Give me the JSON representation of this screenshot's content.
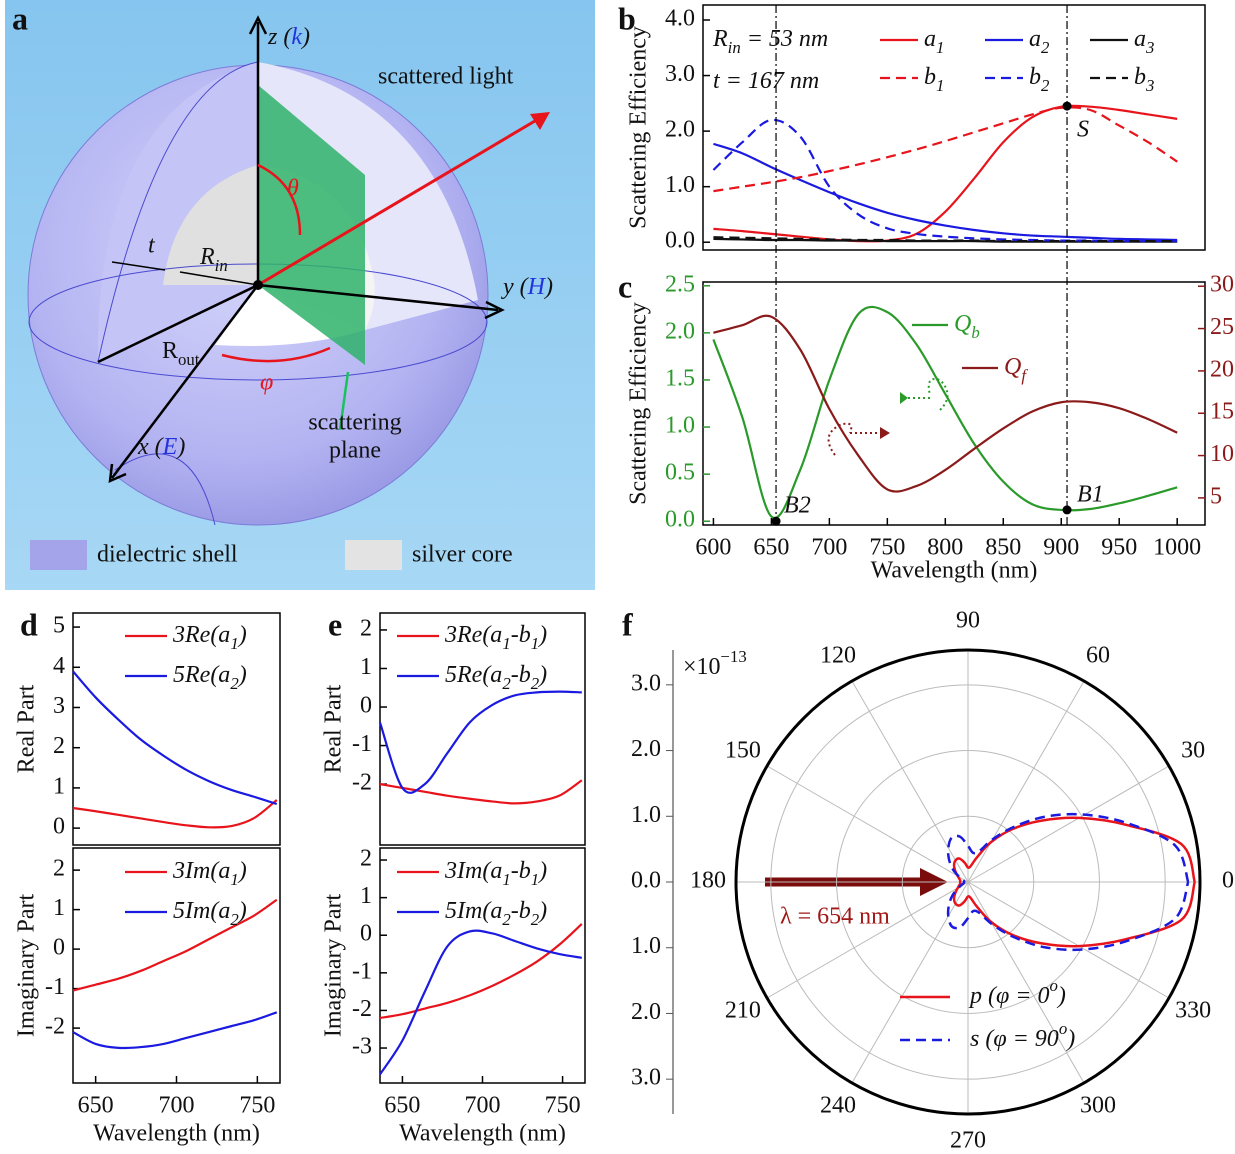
{
  "panel_labels": [
    "a",
    "b",
    "c",
    "d",
    "e",
    "f"
  ],
  "diagram": {
    "z_axis": [
      {
        "text": "z ("
      },
      {
        "text": "k",
        "color": "#2233dd"
      },
      {
        "text": ")"
      }
    ],
    "scattered_light": "scattered light",
    "theta": "θ",
    "t": "t",
    "r_in": [
      {
        "text": "R"
      },
      {
        "sub": "in"
      }
    ],
    "y_axis": [
      {
        "text": "y ("
      },
      {
        "text": "H",
        "color": "#2233dd"
      },
      {
        "text": ")"
      }
    ],
    "r_out": [
      {
        "text": "R"
      },
      {
        "sub": "out"
      }
    ],
    "phi": "φ",
    "x_axis": [
      {
        "text": "x ("
      },
      {
        "text": "E",
        "color": "#2233dd"
      },
      {
        "text": ")"
      }
    ],
    "scattering_plane": [
      "scattering",
      "plane"
    ],
    "legend": [
      "dielectric shell",
      "silver core"
    ]
  },
  "chart_data": [
    {
      "type": "line",
      "ylabel": "Scattering Efficiency",
      "x": [
        600,
        625,
        650,
        675,
        700,
        725,
        750,
        775,
        800,
        825,
        850,
        875,
        900,
        925,
        950,
        975,
        1000
      ],
      "xlim": [
        591,
        1024
      ],
      "ylim": [
        -0.14,
        4.27
      ],
      "yticks": [
        {
          "value": 0,
          "label": "0.0"
        },
        {
          "value": 1,
          "label": "1.0"
        },
        {
          "value": 2,
          "label": "2.0"
        },
        {
          "value": 3,
          "label": "3.0"
        },
        {
          "value": 4,
          "label": "4.0"
        }
      ],
      "annotations": [
        [
          {
            "text": "R"
          },
          {
            "sub": "in"
          },
          {
            "text": " = 53 nm"
          }
        ],
        [
          {
            "text": "t"
          },
          {
            "text": " = 167 nm"
          }
        ]
      ],
      "points": [
        {
          "x": 905,
          "y": 2.45,
          "label": "S"
        }
      ],
      "series": [
        {
          "name": [
            {
              "text": "a"
            },
            {
              "sub": "1"
            }
          ],
          "color": "#e8141b",
          "style": "solid",
          "values": [
            0.24,
            0.2,
            0.15,
            0.1,
            0.05,
            0.02,
            0.03,
            0.15,
            0.55,
            1.15,
            1.8,
            2.25,
            2.44,
            2.44,
            2.38,
            2.3,
            2.22
          ]
        },
        {
          "name": [
            {
              "text": "a"
            },
            {
              "sub": "2"
            }
          ],
          "color": "#1a1ae0",
          "style": "solid",
          "values": [
            1.77,
            1.6,
            1.35,
            1.12,
            0.9,
            0.7,
            0.53,
            0.4,
            0.3,
            0.22,
            0.16,
            0.12,
            0.1,
            0.08,
            0.06,
            0.05,
            0.04
          ]
        },
        {
          "name": [
            {
              "text": "a"
            },
            {
              "sub": "3"
            }
          ],
          "color": "#111111",
          "style": "solid",
          "values": [
            0.06,
            0.05,
            0.04,
            0.04,
            0.03,
            0.03,
            0.02,
            0.02,
            0.02,
            0.02,
            0.01,
            0.01,
            0.01,
            0.01,
            0.01,
            0.01,
            0.01
          ]
        },
        {
          "name": [
            {
              "text": "b"
            },
            {
              "sub": "1"
            }
          ],
          "color": "#e8141b",
          "style": "dashed",
          "values": [
            0.92,
            1.0,
            1.08,
            1.17,
            1.28,
            1.4,
            1.53,
            1.67,
            1.82,
            1.98,
            2.14,
            2.3,
            2.42,
            2.38,
            2.1,
            1.8,
            1.45
          ]
        },
        {
          "name": [
            {
              "text": "b"
            },
            {
              "sub": "2"
            }
          ],
          "color": "#1a1ae0",
          "style": "dashed",
          "values": [
            1.3,
            1.8,
            2.2,
            1.9,
            1.0,
            0.5,
            0.25,
            0.15,
            0.1,
            0.07,
            0.05,
            0.04,
            0.03,
            0.03,
            0.02,
            0.02,
            0.02
          ]
        },
        {
          "name": [
            {
              "text": "b"
            },
            {
              "sub": "3"
            }
          ],
          "color": "#111111",
          "style": "dashed",
          "values": [
            0.09,
            0.08,
            0.07,
            0.06,
            0.05,
            0.04,
            0.04,
            0.03,
            0.03,
            0.03,
            0.02,
            0.02,
            0.02,
            0.02,
            0.02,
            0.02,
            0.02
          ]
        }
      ]
    },
    {
      "type": "line",
      "ylabel": "Scattering Efficiency",
      "xlabel": "Wavelength (nm)",
      "x": [
        600,
        625,
        650,
        675,
        700,
        725,
        750,
        775,
        800,
        825,
        850,
        875,
        900,
        925,
        950,
        975,
        1000
      ],
      "xlim": [
        591,
        1024
      ],
      "ylim": [
        -0.04,
        2.54
      ],
      "y2lim": [
        1.8,
        30.5
      ],
      "xticks": [
        600,
        650,
        700,
        750,
        800,
        850,
        900,
        950,
        1000
      ],
      "yticks": [
        {
          "value": 0,
          "label": "0.0"
        },
        0.5,
        {
          "value": 1,
          "label": "1.0"
        },
        1.5,
        {
          "value": 2,
          "label": "2.0"
        },
        2.5
      ],
      "y2ticks": [
        5,
        10,
        15,
        20,
        25,
        30
      ],
      "vlines": [
        654,
        905
      ],
      "points": [
        {
          "x": 654,
          "y": 0,
          "label": "B2"
        },
        {
          "x": 905,
          "y": 0.12,
          "label": "B1"
        }
      ],
      "series": [
        {
          "name": [
            {
              "text": "Q"
            },
            {
              "sub": "b"
            }
          ],
          "color": "#2a9a2a",
          "style": "solid",
          "values": [
            1.93,
            1.1,
            0.05,
            0.55,
            1.5,
            2.2,
            2.22,
            1.88,
            1.35,
            0.82,
            0.42,
            0.18,
            0.12,
            0.13,
            0.19,
            0.27,
            0.36
          ]
        },
        {
          "name": [
            {
              "text": "Q"
            },
            {
              "sub": "f"
            }
          ],
          "color": "#8b1a1a",
          "style": "solid",
          "axis": "y2",
          "values": [
            24.5,
            25.4,
            26.4,
            22.5,
            15.5,
            10,
            6.0,
            6.4,
            8.3,
            10.8,
            13.2,
            15.2,
            16.3,
            16.3,
            15.6,
            14.3,
            12.7
          ]
        }
      ]
    },
    {
      "type": "line",
      "ylabel": "Real Part",
      "x": [
        636,
        650,
        664,
        678,
        692,
        706,
        720,
        734,
        748,
        762
      ],
      "xlim": [
        636,
        764
      ],
      "ylim": [
        -0.42,
        5.35
      ],
      "yticks": [
        0,
        1,
        2,
        3,
        4,
        5
      ],
      "series": [
        {
          "name": [
            {
              "text": "3Re(a"
            },
            {
              "sub": "1"
            },
            {
              "text": ")"
            }
          ],
          "color": "#e8141b",
          "style": "solid",
          "values": [
            0.5,
            0.42,
            0.33,
            0.24,
            0.15,
            0.07,
            0.02,
            0.05,
            0.25,
            0.7
          ]
        },
        {
          "name": [
            {
              "text": "5Re(a"
            },
            {
              "sub": "2"
            },
            {
              "text": ")"
            }
          ],
          "color": "#1a1ae0",
          "style": "solid",
          "values": [
            3.9,
            3.25,
            2.7,
            2.2,
            1.8,
            1.45,
            1.17,
            0.95,
            0.78,
            0.6
          ]
        }
      ]
    },
    {
      "type": "line",
      "ylabel": "Imaginary Part",
      "xlabel": "Wavelength (nm)",
      "x": [
        636,
        650,
        664,
        678,
        692,
        706,
        720,
        734,
        748,
        762
      ],
      "xlim": [
        636,
        764
      ],
      "ylim": [
        -3.39,
        2.56
      ],
      "xticks": [
        650,
        700,
        750
      ],
      "yticks": [
        -2,
        -1,
        0,
        1,
        2
      ],
      "series": [
        {
          "name": [
            {
              "text": "3Im(a"
            },
            {
              "sub": "1"
            },
            {
              "text": ")"
            }
          ],
          "color": "#e8141b",
          "style": "solid",
          "values": [
            -1.05,
            -0.9,
            -0.75,
            -0.55,
            -0.3,
            -0.05,
            0.25,
            0.55,
            0.85,
            1.25
          ]
        },
        {
          "name": [
            {
              "text": "5Im(a"
            },
            {
              "sub": "2"
            },
            {
              "text": ")"
            }
          ],
          "color": "#1a1ae0",
          "style": "solid",
          "values": [
            -2.1,
            -2.4,
            -2.5,
            -2.48,
            -2.4,
            -2.25,
            -2.1,
            -1.95,
            -1.8,
            -1.6
          ]
        }
      ]
    },
    {
      "type": "line",
      "ylabel": "Real Part",
      "x": [
        636,
        650,
        664,
        678,
        692,
        706,
        720,
        734,
        748,
        762
      ],
      "xlim": [
        636,
        764
      ],
      "ylim": [
        -3.58,
        2.44
      ],
      "yticks": [
        -2,
        -1,
        0,
        1,
        2
      ],
      "series": [
        {
          "name": [
            {
              "text": "3Re(a"
            },
            {
              "sub": "1"
            },
            {
              "text": "-b"
            },
            {
              "sub": "1"
            },
            {
              "text": ")"
            }
          ],
          "color": "#e8141b",
          "style": "solid",
          "values": [
            -2.0,
            -2.1,
            -2.2,
            -2.3,
            -2.38,
            -2.45,
            -2.5,
            -2.45,
            -2.3,
            -1.9
          ]
        },
        {
          "name": [
            {
              "text": "5Re(a"
            },
            {
              "sub": "2"
            },
            {
              "text": "-b"
            },
            {
              "sub": "2"
            },
            {
              "text": ")"
            }
          ],
          "color": "#1a1ae0",
          "style": "solid",
          "values": [
            -0.4,
            -2.1,
            -2.0,
            -1.2,
            -0.4,
            0.05,
            0.3,
            0.38,
            0.4,
            0.38
          ]
        }
      ]
    },
    {
      "type": "line",
      "ylabel": "Imaginary Part",
      "xlabel": "Wavelength (nm)",
      "x": [
        636,
        650,
        664,
        678,
        692,
        706,
        720,
        734,
        748,
        762
      ],
      "xlim": [
        636,
        764
      ],
      "ylim": [
        -3.93,
        2.32
      ],
      "xticks": [
        650,
        700,
        750
      ],
      "yticks": [
        -3,
        -2,
        -1,
        0,
        1,
        2
      ],
      "series": [
        {
          "name": [
            {
              "text": "3Im(a"
            },
            {
              "sub": "1"
            },
            {
              "text": "-b"
            },
            {
              "sub": "1"
            },
            {
              "text": ")"
            }
          ],
          "color": "#e8141b",
          "style": "solid",
          "values": [
            -2.2,
            -2.1,
            -1.95,
            -1.8,
            -1.6,
            -1.35,
            -1.05,
            -0.7,
            -0.25,
            0.3
          ]
        },
        {
          "name": [
            {
              "text": "5Im(a"
            },
            {
              "sub": "2"
            },
            {
              "text": "-b"
            },
            {
              "sub": "2"
            },
            {
              "text": ")"
            }
          ],
          "color": "#1a1ae0",
          "style": "solid",
          "values": [
            -3.7,
            -2.8,
            -1.5,
            -0.3,
            0.1,
            0.05,
            -0.15,
            -0.35,
            -0.5,
            -0.6
          ]
        }
      ]
    },
    {
      "type": "polar",
      "scale_label": [
        {
          "text": "×10"
        },
        {
          "sup": "−13"
        }
      ],
      "annotation": "λ = 654 nm",
      "theta": [
        0,
        10,
        20,
        30,
        40,
        50,
        60,
        70,
        80,
        90,
        100,
        110,
        120,
        130,
        140,
        150,
        160,
        170,
        180,
        190,
        200,
        210,
        220,
        230,
        240,
        250,
        260,
        270,
        280,
        290,
        300,
        310,
        320,
        330,
        340,
        350,
        360
      ],
      "rlim": [
        0,
        3.53
      ],
      "rticks": [
        {
          "value": 0,
          "label": "0.0"
        },
        {
          "value": 1,
          "label": "1.0"
        },
        {
          "value": 2,
          "label": "2.0"
        },
        {
          "value": 3,
          "label": "3.0"
        }
      ],
      "thetaticks": [
        0,
        30,
        60,
        90,
        120,
        150,
        180,
        210,
        240,
        270,
        300,
        330
      ],
      "series": [
        {
          "name": [
            {
              "text": "p"
            },
            {
              "text": "  (φ = 0"
            },
            {
              "sup": "o"
            },
            {
              "text": ")"
            }
          ],
          "color": "#e8141b",
          "style": "solid",
          "values": [
            3.45,
            3.3,
            2.55,
            1.95,
            1.45,
            1.05,
            0.7,
            0.4,
            0.25,
            0.22,
            0.3,
            0.38,
            0.38,
            0.33,
            0.25,
            0.18,
            0.14,
            0.12,
            0.12,
            0.12,
            0.14,
            0.18,
            0.25,
            0.33,
            0.38,
            0.38,
            0.3,
            0.22,
            0.25,
            0.4,
            0.7,
            1.05,
            1.45,
            1.95,
            2.55,
            3.3,
            3.45
          ]
        },
        {
          "name": [
            {
              "text": "s"
            },
            {
              "text": "  (φ = 90"
            },
            {
              "sup": "o"
            },
            {
              "text": ")"
            }
          ],
          "color": "#1a1ae0",
          "style": "dashed",
          "values": [
            3.35,
            3.2,
            2.6,
            2.05,
            1.55,
            1.1,
            0.75,
            0.5,
            0.45,
            0.55,
            0.7,
            0.72,
            0.6,
            0.45,
            0.3,
            0.15,
            0.08,
            0.06,
            0.06,
            0.06,
            0.08,
            0.15,
            0.3,
            0.45,
            0.6,
            0.72,
            0.7,
            0.55,
            0.45,
            0.5,
            0.75,
            1.1,
            1.55,
            2.05,
            2.6,
            3.2,
            3.35
          ]
        }
      ]
    }
  ]
}
